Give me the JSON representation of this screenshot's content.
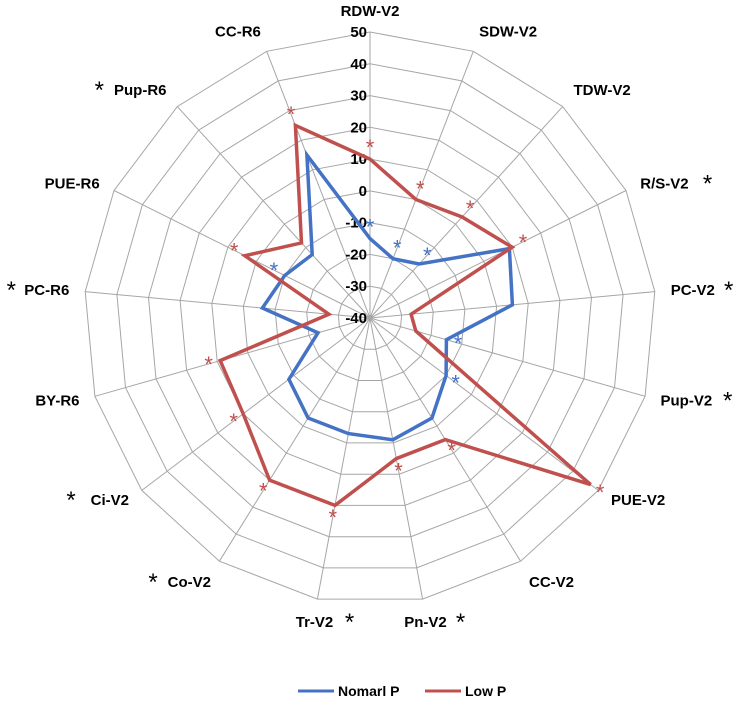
{
  "chart_data": {
    "type": "radar",
    "axes": [
      "RDW-V2",
      "SDW-V2",
      "TDW-V2",
      "R/S-V2",
      "PC-V2",
      "Pup-V2",
      "PUE-V2",
      "CC-V2",
      "Pn-V2",
      "Tr-V2",
      "Co-V2",
      "Ci-V2",
      "BY-R6",
      "PC-R6",
      "PUE-R6",
      "Pup-R6",
      "CC-R6"
    ],
    "axis_significance": [
      false,
      false,
      false,
      true,
      true,
      true,
      false,
      false,
      true,
      true,
      true,
      true,
      false,
      true,
      false,
      true,
      false
    ],
    "r_ticks": [
      -40,
      -30,
      -20,
      -10,
      0,
      10,
      20,
      30,
      40,
      50
    ],
    "r_range": [
      -40,
      50
    ],
    "series": [
      {
        "name": "Nomarl P",
        "color": "#4472C4",
        "values": [
          -15,
          -20,
          -17,
          9,
          5,
          -15,
          -10,
          -3,
          -1,
          -3,
          -3,
          -8,
          -23,
          -6,
          -10,
          -13,
          15
        ]
      },
      {
        "name": "Low P",
        "color": "#C0504D",
        "values": [
          10,
          0,
          3,
          10,
          -27,
          -25,
          47,
          5,
          5,
          20,
          20,
          10,
          9,
          -27,
          4,
          -8,
          25
        ]
      }
    ],
    "significance_markers": [
      {
        "axis": "RDW-V2",
        "series": "Nomarl P"
      },
      {
        "axis": "RDW-V2",
        "series": "Low P"
      },
      {
        "axis": "SDW-V2",
        "series": "Nomarl P"
      },
      {
        "axis": "SDW-V2",
        "series": "Low P"
      },
      {
        "axis": "TDW-V2",
        "series": "Nomarl P"
      },
      {
        "axis": "TDW-V2",
        "series": "Low P"
      },
      {
        "axis": "R/S-V2",
        "series": "Low P"
      },
      {
        "axis": "Pup-V2",
        "series": "Nomarl P"
      },
      {
        "axis": "PUE-V2",
        "series": "Nomarl P"
      },
      {
        "axis": "PUE-V2",
        "series": "Low P"
      },
      {
        "axis": "CC-V2",
        "series": "Low P"
      },
      {
        "axis": "Pn-V2",
        "series": "Low P"
      },
      {
        "axis": "Tr-V2",
        "series": "Low P"
      },
      {
        "axis": "Co-V2",
        "series": "Low P"
      },
      {
        "axis": "Ci-V2",
        "series": "Low P"
      },
      {
        "axis": "BY-R6",
        "series": "Low P"
      },
      {
        "axis": "PUE-R6",
        "series": "Nomarl P"
      },
      {
        "axis": "PUE-R6",
        "series": "Low P"
      },
      {
        "axis": "CC-R6",
        "series": "Low P"
      }
    ],
    "marker_symbol": "*",
    "legend": {
      "position": "bottom",
      "entries": [
        "Nomarl P",
        "Low P"
      ]
    },
    "grid": true
  }
}
